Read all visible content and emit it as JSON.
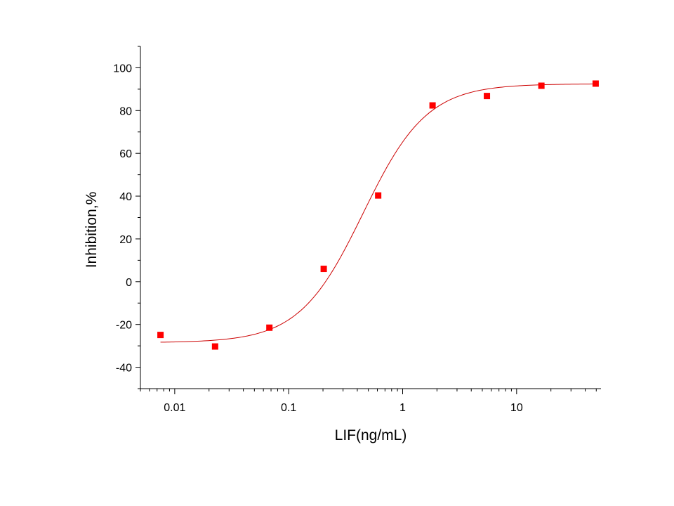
{
  "chart_data": {
    "type": "scatter",
    "title": "",
    "xlabel": "LIF(ng/mL)",
    "ylabel": "Inhibition,%",
    "x_scale": "log",
    "xlim": [
      0.005,
      55
    ],
    "ylim": [
      -50,
      110
    ],
    "x_ticks": [
      0.01,
      0.1,
      1,
      10
    ],
    "x_tick_labels": [
      "0.01",
      "0.1",
      "1",
      "10"
    ],
    "y_ticks": [
      -40,
      -20,
      0,
      20,
      40,
      60,
      80,
      100
    ],
    "y_tick_labels": [
      "-40",
      "-20",
      "0",
      "20",
      "40",
      "60",
      "80",
      "100"
    ],
    "grid": false,
    "legend": "none",
    "colors": {
      "points": "#ff0000",
      "fit": "#cc0000",
      "axis": "#000000"
    },
    "series": [
      {
        "marker": "square",
        "x": [
          0.0075,
          0.0226,
          0.0677,
          0.203,
          0.61,
          1.83,
          5.49,
          16.5,
          49.4
        ],
        "y": [
          -24.9,
          -30.3,
          -21.5,
          6.0,
          40.3,
          82.4,
          86.8,
          91.6,
          92.6
        ]
      }
    ],
    "fit": {
      "model": "4PL",
      "bottom": -28.5,
      "top": 92.5,
      "ec50": 0.45,
      "hill": 1.55
    }
  }
}
